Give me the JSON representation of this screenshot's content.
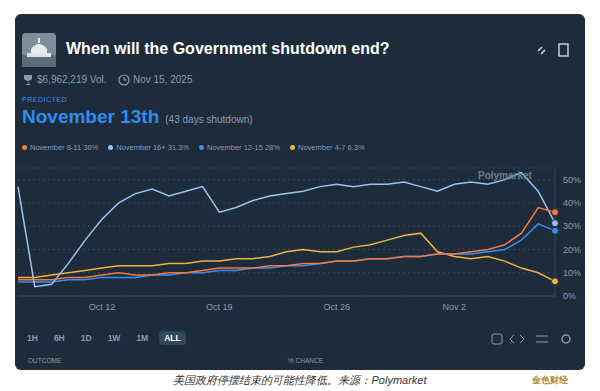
{
  "header": {
    "title": "When will the Government shutdown end?",
    "volume": "$6,962,219 Vol.",
    "end_date": "Nov 15, 2025",
    "predicted_label": "PREDICTED",
    "predicted": "November 13th",
    "predicted_note": "(43 days shutdown)"
  },
  "chart_data": {
    "type": "line",
    "legend": "top",
    "grid": true,
    "annotation": "Polymarket",
    "categories": [
      null,
      null,
      null,
      null,
      null,
      "Oct 12",
      null,
      null,
      null,
      null,
      null,
      null,
      "Oct 19",
      null,
      null,
      null,
      null,
      null,
      null,
      "Oct 26",
      null,
      null,
      null,
      null,
      null,
      null,
      "Nov 2",
      null,
      null,
      null,
      null,
      null,
      null
    ],
    "ylim": [
      0,
      55
    ],
    "yticks": [
      {
        "value": 0,
        "label": "0%"
      },
      {
        "value": 10,
        "label": "10%"
      },
      {
        "value": 20,
        "label": "20%"
      },
      {
        "value": 30,
        "label": "30%"
      },
      {
        "value": 40,
        "label": "40%"
      },
      {
        "value": 50,
        "label": "50%"
      }
    ],
    "series": [
      {
        "name": "November 8-11 36%",
        "color": "#f5793b",
        "values": [
          7,
          7,
          7,
          8,
          8,
          9,
          10,
          9,
          9,
          10,
          10,
          11,
          12,
          12,
          12,
          13,
          13,
          14,
          14,
          15,
          15,
          16,
          16,
          17,
          17,
          18,
          18,
          19,
          20,
          22,
          27,
          38,
          36
        ]
      },
      {
        "name": "November 16+ 31.3%",
        "color": "#9cc3f0",
        "values": [
          47,
          4,
          5,
          14,
          24,
          33,
          40,
          44,
          46,
          43,
          45,
          47,
          36,
          38,
          41,
          43,
          44,
          45,
          47,
          48,
          47,
          48,
          48,
          49,
          47,
          45,
          48,
          49,
          48,
          50,
          53,
          45,
          31.3
        ]
      },
      {
        "name": "November 12-15 28%",
        "color": "#3b8df5",
        "values": [
          6,
          6,
          6,
          7,
          7,
          8,
          8,
          8,
          9,
          9,
          10,
          10,
          11,
          11,
          12,
          12,
          13,
          13,
          14,
          15,
          15,
          16,
          16,
          17,
          17,
          18,
          18,
          18,
          19,
          20,
          24,
          31,
          28
        ]
      },
      {
        "name": "November 4-7 6.3%",
        "color": "#f0b43c",
        "values": [
          8,
          8,
          9,
          10,
          11,
          12,
          13,
          13,
          13,
          14,
          14,
          15,
          15,
          16,
          16,
          17,
          19,
          20,
          19,
          19,
          21,
          22,
          24,
          26,
          27,
          19,
          17,
          16,
          17,
          15,
          12,
          10,
          6.3
        ]
      }
    ]
  },
  "controls": {
    "ranges": [
      "1H",
      "6H",
      "1D",
      "1W",
      "1M",
      "ALL"
    ],
    "selected": "ALL"
  },
  "table": {
    "columns": [
      "OUTCOME",
      "% CHANCE"
    ]
  },
  "caption": "美国政府停摆结束的可能性降低。来源：Polymarket",
  "watermark": "金色财经"
}
